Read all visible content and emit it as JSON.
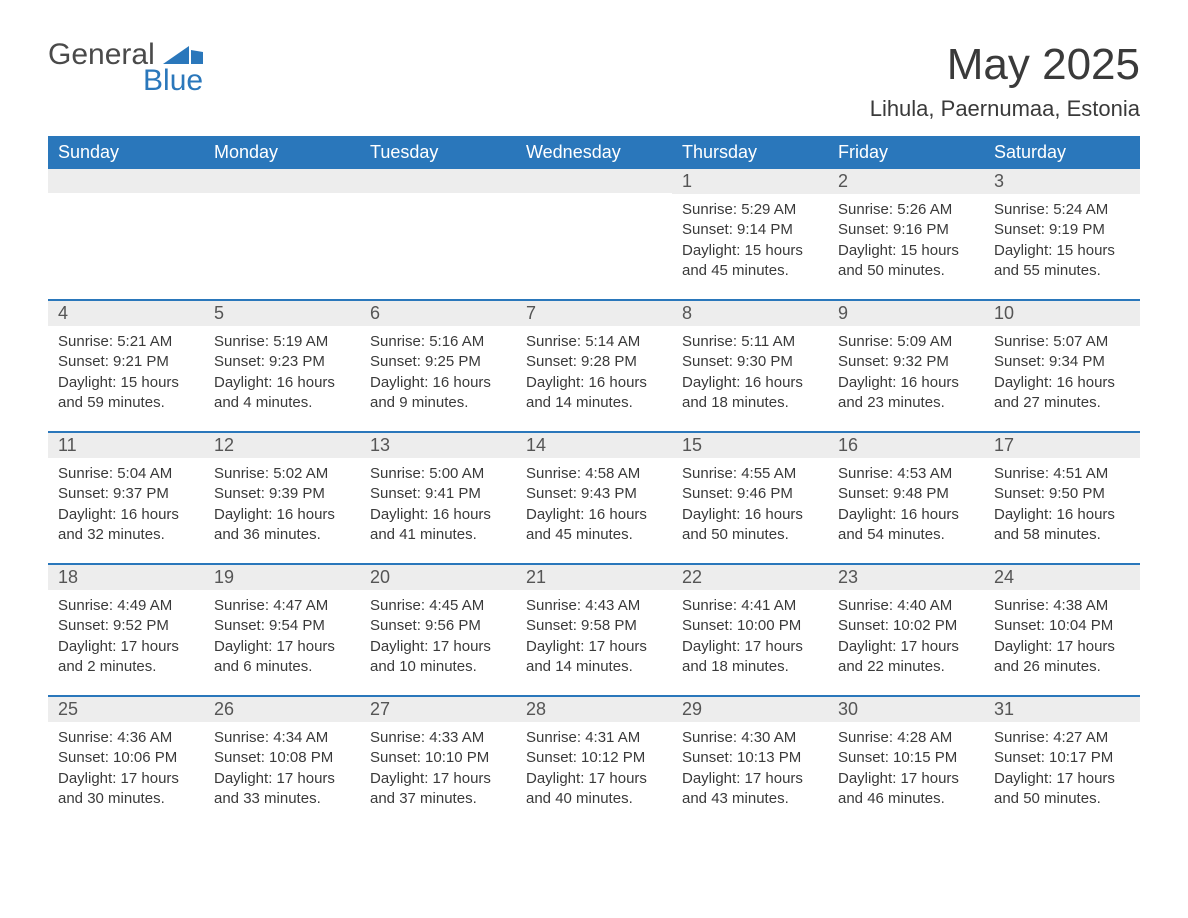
{
  "logo": {
    "general": "General",
    "blue": "Blue",
    "mark_color": "#2a77bb"
  },
  "header": {
    "month_title": "May 2025",
    "location": "Lihula, Paernumaa, Estonia"
  },
  "colors": {
    "header_bg": "#2a77bb",
    "header_text": "#ffffff",
    "daynum_bg": "#ededed",
    "week_border": "#2a77bb",
    "body_text": "#3a3a3a"
  },
  "fonts": {
    "month_title_size_pt": 33,
    "location_size_pt": 17,
    "dayhead_size_pt": 14,
    "daynum_size_pt": 14,
    "detail_size_pt": 11
  },
  "day_names": [
    "Sunday",
    "Monday",
    "Tuesday",
    "Wednesday",
    "Thursday",
    "Friday",
    "Saturday"
  ],
  "weeks": [
    [
      null,
      null,
      null,
      null,
      {
        "n": "1",
        "sunrise": "Sunrise: 5:29 AM",
        "sunset": "Sunset: 9:14 PM",
        "daylight": "Daylight: 15 hours and 45 minutes."
      },
      {
        "n": "2",
        "sunrise": "Sunrise: 5:26 AM",
        "sunset": "Sunset: 9:16 PM",
        "daylight": "Daylight: 15 hours and 50 minutes."
      },
      {
        "n": "3",
        "sunrise": "Sunrise: 5:24 AM",
        "sunset": "Sunset: 9:19 PM",
        "daylight": "Daylight: 15 hours and 55 minutes."
      }
    ],
    [
      {
        "n": "4",
        "sunrise": "Sunrise: 5:21 AM",
        "sunset": "Sunset: 9:21 PM",
        "daylight": "Daylight: 15 hours and 59 minutes."
      },
      {
        "n": "5",
        "sunrise": "Sunrise: 5:19 AM",
        "sunset": "Sunset: 9:23 PM",
        "daylight": "Daylight: 16 hours and 4 minutes."
      },
      {
        "n": "6",
        "sunrise": "Sunrise: 5:16 AM",
        "sunset": "Sunset: 9:25 PM",
        "daylight": "Daylight: 16 hours and 9 minutes."
      },
      {
        "n": "7",
        "sunrise": "Sunrise: 5:14 AM",
        "sunset": "Sunset: 9:28 PM",
        "daylight": "Daylight: 16 hours and 14 minutes."
      },
      {
        "n": "8",
        "sunrise": "Sunrise: 5:11 AM",
        "sunset": "Sunset: 9:30 PM",
        "daylight": "Daylight: 16 hours and 18 minutes."
      },
      {
        "n": "9",
        "sunrise": "Sunrise: 5:09 AM",
        "sunset": "Sunset: 9:32 PM",
        "daylight": "Daylight: 16 hours and 23 minutes."
      },
      {
        "n": "10",
        "sunrise": "Sunrise: 5:07 AM",
        "sunset": "Sunset: 9:34 PM",
        "daylight": "Daylight: 16 hours and 27 minutes."
      }
    ],
    [
      {
        "n": "11",
        "sunrise": "Sunrise: 5:04 AM",
        "sunset": "Sunset: 9:37 PM",
        "daylight": "Daylight: 16 hours and 32 minutes."
      },
      {
        "n": "12",
        "sunrise": "Sunrise: 5:02 AM",
        "sunset": "Sunset: 9:39 PM",
        "daylight": "Daylight: 16 hours and 36 minutes."
      },
      {
        "n": "13",
        "sunrise": "Sunrise: 5:00 AM",
        "sunset": "Sunset: 9:41 PM",
        "daylight": "Daylight: 16 hours and 41 minutes."
      },
      {
        "n": "14",
        "sunrise": "Sunrise: 4:58 AM",
        "sunset": "Sunset: 9:43 PM",
        "daylight": "Daylight: 16 hours and 45 minutes."
      },
      {
        "n": "15",
        "sunrise": "Sunrise: 4:55 AM",
        "sunset": "Sunset: 9:46 PM",
        "daylight": "Daylight: 16 hours and 50 minutes."
      },
      {
        "n": "16",
        "sunrise": "Sunrise: 4:53 AM",
        "sunset": "Sunset: 9:48 PM",
        "daylight": "Daylight: 16 hours and 54 minutes."
      },
      {
        "n": "17",
        "sunrise": "Sunrise: 4:51 AM",
        "sunset": "Sunset: 9:50 PM",
        "daylight": "Daylight: 16 hours and 58 minutes."
      }
    ],
    [
      {
        "n": "18",
        "sunrise": "Sunrise: 4:49 AM",
        "sunset": "Sunset: 9:52 PM",
        "daylight": "Daylight: 17 hours and 2 minutes."
      },
      {
        "n": "19",
        "sunrise": "Sunrise: 4:47 AM",
        "sunset": "Sunset: 9:54 PM",
        "daylight": "Daylight: 17 hours and 6 minutes."
      },
      {
        "n": "20",
        "sunrise": "Sunrise: 4:45 AM",
        "sunset": "Sunset: 9:56 PM",
        "daylight": "Daylight: 17 hours and 10 minutes."
      },
      {
        "n": "21",
        "sunrise": "Sunrise: 4:43 AM",
        "sunset": "Sunset: 9:58 PM",
        "daylight": "Daylight: 17 hours and 14 minutes."
      },
      {
        "n": "22",
        "sunrise": "Sunrise: 4:41 AM",
        "sunset": "Sunset: 10:00 PM",
        "daylight": "Daylight: 17 hours and 18 minutes."
      },
      {
        "n": "23",
        "sunrise": "Sunrise: 4:40 AM",
        "sunset": "Sunset: 10:02 PM",
        "daylight": "Daylight: 17 hours and 22 minutes."
      },
      {
        "n": "24",
        "sunrise": "Sunrise: 4:38 AM",
        "sunset": "Sunset: 10:04 PM",
        "daylight": "Daylight: 17 hours and 26 minutes."
      }
    ],
    [
      {
        "n": "25",
        "sunrise": "Sunrise: 4:36 AM",
        "sunset": "Sunset: 10:06 PM",
        "daylight": "Daylight: 17 hours and 30 minutes."
      },
      {
        "n": "26",
        "sunrise": "Sunrise: 4:34 AM",
        "sunset": "Sunset: 10:08 PM",
        "daylight": "Daylight: 17 hours and 33 minutes."
      },
      {
        "n": "27",
        "sunrise": "Sunrise: 4:33 AM",
        "sunset": "Sunset: 10:10 PM",
        "daylight": "Daylight: 17 hours and 37 minutes."
      },
      {
        "n": "28",
        "sunrise": "Sunrise: 4:31 AM",
        "sunset": "Sunset: 10:12 PM",
        "daylight": "Daylight: 17 hours and 40 minutes."
      },
      {
        "n": "29",
        "sunrise": "Sunrise: 4:30 AM",
        "sunset": "Sunset: 10:13 PM",
        "daylight": "Daylight: 17 hours and 43 minutes."
      },
      {
        "n": "30",
        "sunrise": "Sunrise: 4:28 AM",
        "sunset": "Sunset: 10:15 PM",
        "daylight": "Daylight: 17 hours and 46 minutes."
      },
      {
        "n": "31",
        "sunrise": "Sunrise: 4:27 AM",
        "sunset": "Sunset: 10:17 PM",
        "daylight": "Daylight: 17 hours and 50 minutes."
      }
    ]
  ]
}
